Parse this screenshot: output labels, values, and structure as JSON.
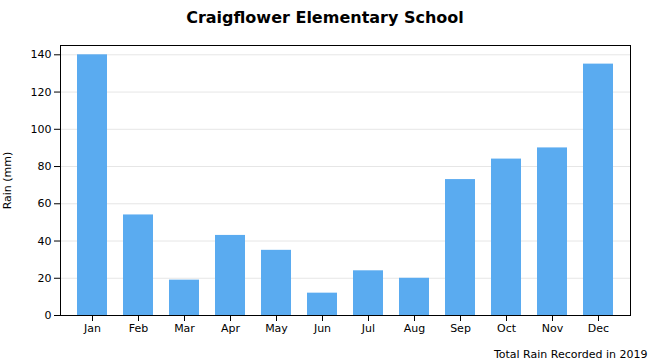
{
  "chart_data": {
    "type": "bar",
    "title": "Craigflower Elementary School",
    "xlabel": "Total Rain Recorded in 2019",
    "ylabel": "Rain (mm)",
    "categories": [
      "Jan",
      "Feb",
      "Mar",
      "Apr",
      "May",
      "Jun",
      "Jul",
      "Aug",
      "Sep",
      "Oct",
      "Nov",
      "Dec"
    ],
    "values": [
      140,
      54,
      19,
      43,
      35,
      12,
      24,
      20,
      73,
      84,
      90,
      135
    ],
    "color": "#5aabf0",
    "ylim": [
      0,
      145
    ],
    "yticks": [
      0,
      20,
      40,
      60,
      80,
      100,
      120,
      140
    ],
    "grid": true
  }
}
